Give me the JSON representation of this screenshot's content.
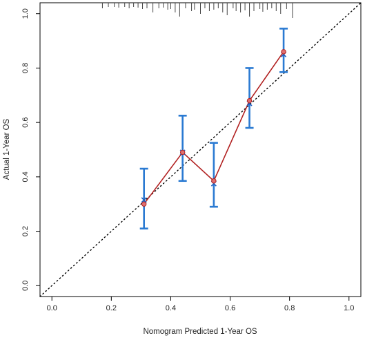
{
  "chart_data": {
    "type": "scatter",
    "title": "",
    "xlabel": "Nomogram Predicted 1-Year OS",
    "ylabel": "Actual 1-Year OS",
    "xlim": [
      -0.04,
      1.04
    ],
    "ylim": [
      -0.04,
      1.04
    ],
    "x_ticks": [
      "0.0",
      "0.2",
      "0.4",
      "0.6",
      "0.8",
      "1.0"
    ],
    "y_ticks": [
      "0.0",
      "0.2",
      "0.4",
      "0.6",
      "0.8",
      "1.0"
    ],
    "grid": false,
    "legend": "none",
    "reference_line": {
      "name": "ideal",
      "from": [
        0,
        0
      ],
      "to": [
        1,
        1
      ],
      "style": "dotted",
      "color": "#000000"
    },
    "series": [
      {
        "kind": "observed",
        "color": "#b22222",
        "marker": "circle",
        "x": [
          0.31,
          0.44,
          0.545,
          0.665,
          0.78
        ],
        "y": [
          0.3,
          0.49,
          0.385,
          0.68,
          0.86
        ]
      },
      {
        "kind": "bias-corrected",
        "color": "#1f5fbf",
        "marker": "x",
        "x": [
          0.31,
          0.44,
          0.545,
          0.665,
          0.78
        ],
        "y": [
          0.315,
          0.49,
          0.375,
          0.67,
          0.85
        ]
      }
    ],
    "error_bars": {
      "color": "#2a7ad2",
      "x": [
        0.31,
        0.44,
        0.545,
        0.665,
        0.78
      ],
      "lower": [
        0.21,
        0.385,
        0.29,
        0.58,
        0.785
      ],
      "upper": [
        0.43,
        0.625,
        0.525,
        0.8,
        0.945
      ]
    },
    "rug": {
      "x": [
        0.17,
        0.19,
        0.21,
        0.225,
        0.245,
        0.26,
        0.275,
        0.29,
        0.305,
        0.32,
        0.34,
        0.36,
        0.375,
        0.39,
        0.4,
        0.415,
        0.43,
        0.45,
        0.47,
        0.48,
        0.5,
        0.515,
        0.53,
        0.545,
        0.56,
        0.575,
        0.59,
        0.61,
        0.62,
        0.635,
        0.65,
        0.665,
        0.68,
        0.7,
        0.71,
        0.725,
        0.74,
        0.755,
        0.77,
        0.79,
        0.81
      ],
      "h": [
        0.3,
        0.2,
        0.2,
        0.25,
        0.2,
        0.3,
        0.2,
        0.25,
        0.35,
        0.3,
        0.6,
        0.3,
        0.25,
        0.4,
        0.35,
        0.6,
        0.9,
        0.3,
        0.5,
        0.4,
        0.7,
        0.3,
        0.5,
        0.4,
        0.3,
        0.6,
        0.8,
        0.3,
        0.5,
        0.6,
        0.45,
        0.9,
        0.5,
        0.35,
        0.55,
        0.4,
        0.3,
        0.5,
        0.7,
        0.35,
        1.0
      ]
    }
  }
}
